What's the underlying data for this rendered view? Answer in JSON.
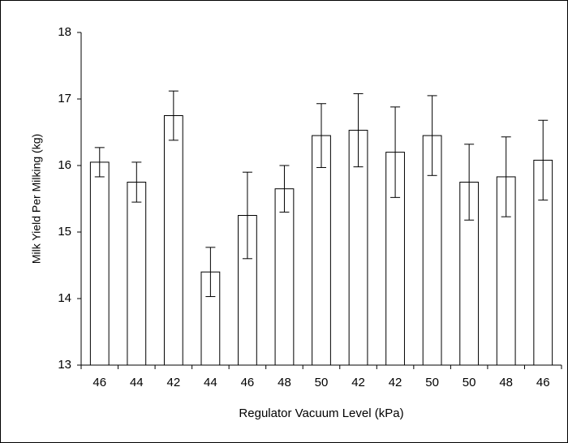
{
  "chart_data": {
    "type": "bar",
    "x_label": "Regulator Vacuum Level (kPa)",
    "y_label": "Milk Yield Per Milking (kg)",
    "categories": [
      "46",
      "44",
      "42",
      "44",
      "46",
      "48",
      "50",
      "42",
      "42",
      "50",
      "50",
      "48",
      "46"
    ],
    "values": [
      16.05,
      15.75,
      16.75,
      14.4,
      15.25,
      15.65,
      16.45,
      16.53,
      16.2,
      16.45,
      15.75,
      15.83,
      16.08
    ],
    "errors": [
      0.22,
      0.3,
      0.37,
      0.37,
      0.65,
      0.35,
      0.48,
      0.55,
      0.68,
      0.6,
      0.57,
      0.6,
      0.6
    ],
    "color": "#ffffff",
    "ylim": [
      13,
      18
    ],
    "yticks": [
      13,
      14,
      15,
      16,
      17,
      18
    ],
    "grid": false
  }
}
